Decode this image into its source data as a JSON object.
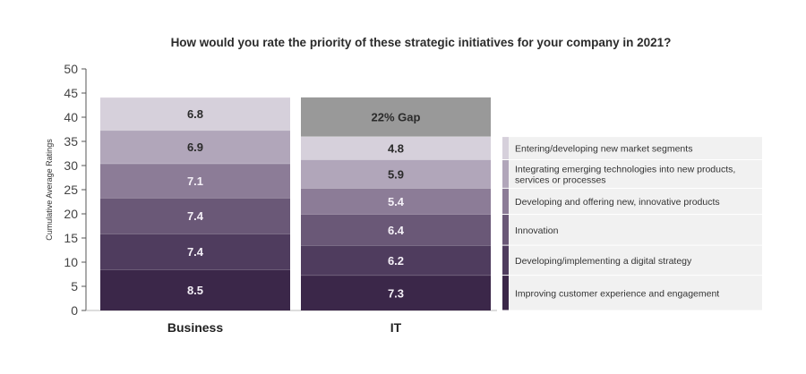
{
  "chart_data": {
    "type": "bar",
    "stacked": true,
    "title": "How would you rate the priority of these strategic initiatives for your company in 2021?",
    "ylabel": "Cumulative Average Ratings",
    "ylim": [
      0,
      50
    ],
    "yticks": [
      0,
      5,
      10,
      15,
      20,
      25,
      30,
      35,
      40,
      45,
      50
    ],
    "categories": [
      "Business",
      "IT"
    ],
    "series": [
      {
        "name": "Improving customer experience and engagement",
        "values": [
          8.5,
          7.3
        ],
        "labels": [
          "8.5",
          "7.3"
        ],
        "color": "#3b2749"
      },
      {
        "name": "Developing/implementing a digital strategy",
        "values": [
          7.4,
          6.2
        ],
        "labels": [
          "7.4",
          "6.2"
        ],
        "color": "#4f3c5e"
      },
      {
        "name": "Innovation",
        "values": [
          7.4,
          6.4
        ],
        "labels": [
          "7.4",
          "6.4"
        ],
        "color": "#6a5877"
      },
      {
        "name": "Developing and offering new, innovative products",
        "values": [
          7.1,
          5.4
        ],
        "labels": [
          "7.1",
          "5.4"
        ],
        "color": "#8c7c97"
      },
      {
        "name": "Integrating emerging technologies into new products, services or processes",
        "values": [
          6.9,
          5.9
        ],
        "labels": [
          "6.9",
          "5.9"
        ],
        "color": "#b1a6ba"
      },
      {
        "name": "Entering/developing new market segments",
        "values": [
          6.8,
          4.8
        ],
        "labels": [
          "6.8",
          "4.8"
        ],
        "color": "#d6d0db"
      }
    ],
    "gap": {
      "label": "22% Gap",
      "category": "IT",
      "color": "#999999"
    },
    "legend_lines": [
      [
        "Entering/developing new market segments"
      ],
      [
        "Integrating emerging technologies into new products,",
        "services or processes"
      ],
      [
        "Developing and offering new, innovative products"
      ],
      [
        "Innovation"
      ],
      [
        "Developing/implementing a digital strategy"
      ],
      [
        "Improving customer experience and engagement"
      ]
    ],
    "legend_position": "right",
    "grid": false
  }
}
